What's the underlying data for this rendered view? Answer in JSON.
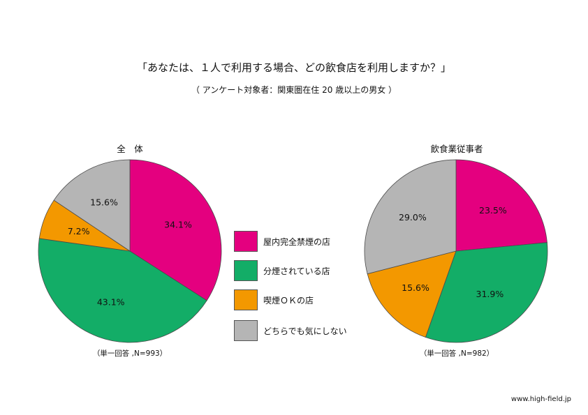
{
  "title": "「あなたは、１人で利用する場合、どの飲食店を利用しますか？」",
  "subtitle": "（ アンケート対象者：関東圏在住 20 歳以上の男女 ）",
  "site": "www.high-field.jp",
  "colors": {
    "pink": "#e4007f",
    "green": "#13ad67",
    "orange": "#f39800",
    "gray": "#b5b5b5"
  },
  "chart_data": [
    {
      "type": "pie",
      "title": "全　体",
      "note": "（単一回答 ,N=993）",
      "categories": [
        "屋内完全禁煙の店",
        "分煙されている店",
        "喫煙ＯＫの店",
        "どちらでも気にしない"
      ],
      "values": [
        34.1,
        43.1,
        7.2,
        15.6
      ],
      "labels": [
        "34.1%",
        "43.1%",
        "7.2%",
        "15.6%"
      ]
    },
    {
      "type": "pie",
      "title": "飲食業従事者",
      "note": "（単一回答 ,N=982）",
      "categories": [
        "屋内完全禁煙の店",
        "分煙されている店",
        "喫煙ＯＫの店",
        "どちらでも気にしない"
      ],
      "values": [
        23.5,
        31.9,
        15.6,
        29.0
      ],
      "labels": [
        "23.5%",
        "31.9%",
        "15.6%",
        "29.0%"
      ]
    }
  ],
  "legend": [
    {
      "label": "屋内完全禁煙の店",
      "color": "#e4007f"
    },
    {
      "label": "分煙されている店",
      "color": "#13ad67"
    },
    {
      "label": "喫煙ＯＫの店",
      "color": "#f39800"
    },
    {
      "label": "どちらでも気にしない",
      "color": "#b5b5b5"
    }
  ]
}
